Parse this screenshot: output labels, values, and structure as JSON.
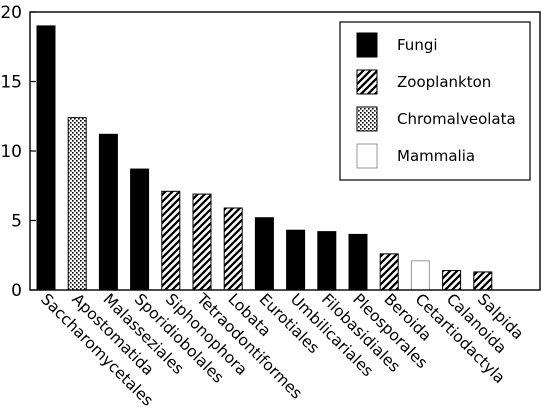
{
  "chart_data": {
    "type": "bar",
    "title": "",
    "xlabel": "",
    "ylabel": "",
    "ylim": [
      0,
      20
    ],
    "yticks": [
      0,
      5,
      10,
      15,
      20
    ],
    "grid": false,
    "legend_position": "top-right",
    "categories": [
      "Saccharomycetales",
      "Apostomatida",
      "Malasseziales",
      "Sporidiobolales",
      "Siphonophora",
      "Tetraodontiformes",
      "Lobata",
      "Eurotiales",
      "Umbilicariales",
      "Filobasidiales",
      "Pleosporales",
      "Beroida",
      "Cetartiodactyla",
      "Calanoida",
      "Salpida"
    ],
    "values": [
      19.0,
      12.4,
      11.2,
      8.7,
      7.1,
      6.9,
      5.9,
      5.2,
      4.3,
      4.2,
      4.0,
      2.6,
      2.1,
      1.4,
      1.3
    ],
    "groups": [
      "Fungi",
      "Chromalveolata",
      "Fungi",
      "Fungi",
      "Zooplankton",
      "Zooplankton",
      "Zooplankton",
      "Fungi",
      "Fungi",
      "Fungi",
      "Fungi",
      "Zooplankton",
      "Mammalia",
      "Zooplankton",
      "Zooplankton"
    ],
    "legend": [
      {
        "name": "Fungi",
        "pattern": "solid"
      },
      {
        "name": "Zooplankton",
        "pattern": "hatch"
      },
      {
        "name": "Chromalveolata",
        "pattern": "dots"
      },
      {
        "name": "Mammalia",
        "pattern": "empty"
      }
    ],
    "colors": {
      "ink": "#000000",
      "background": "#ffffff"
    }
  }
}
